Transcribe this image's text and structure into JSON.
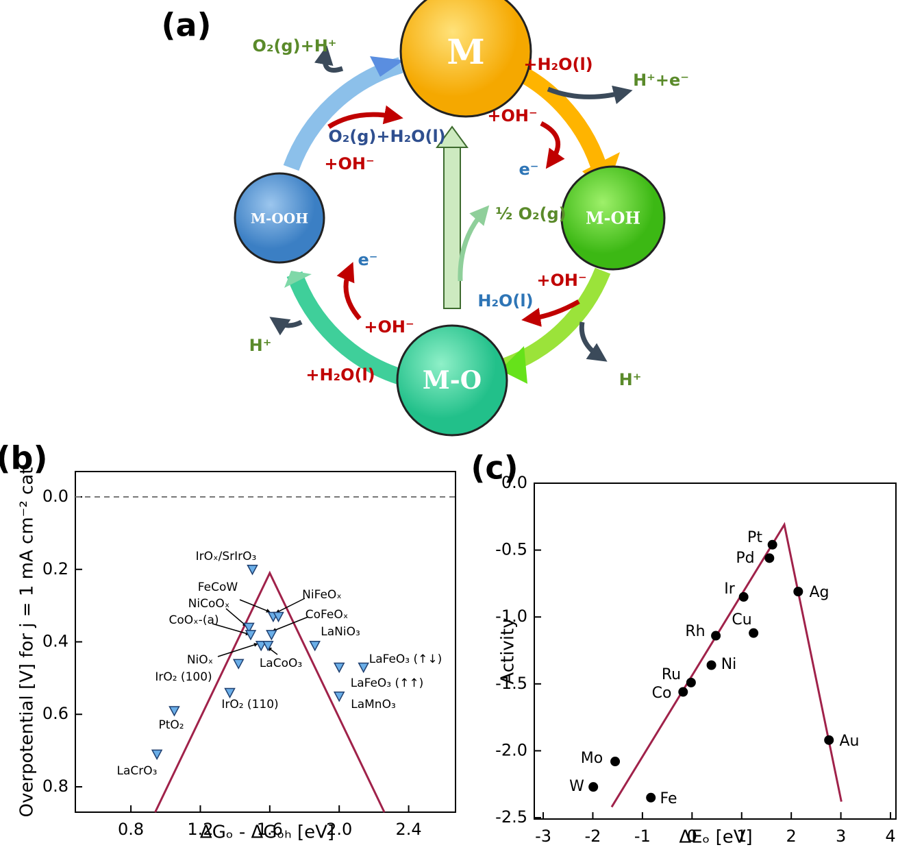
{
  "diagram": {
    "panel_label": "(a)",
    "nodes": [
      "M",
      "M-OH",
      "M-O",
      "M-OOH"
    ],
    "labels": [
      "O₂(g)+H⁺",
      "+H₂O(l)",
      "H⁺+e⁻",
      "+OH⁻",
      "e⁻",
      "O₂(g)+H₂O(l)",
      "+OH⁻",
      "½ O₂(g)",
      "e⁻",
      "+OH⁻",
      "H₂O(l)",
      "+OH⁻",
      "H⁺",
      "H⁺",
      "+H₂O(l)"
    ]
  },
  "chart_data": [
    {
      "type": "scatter",
      "panel_label": "(b)",
      "x_label": "ΔGₒ - ΔGₒₕ [eV]",
      "y_label": "Overpotential [V] for j = 1 mA cm⁻² cat",
      "x": [
        1.5,
        1.62,
        1.65,
        1.48,
        1.61,
        1.49,
        1.55,
        1.59,
        1.86,
        1.42,
        1.37,
        1.05,
        0.95,
        2.14,
        2.0,
        2.0
      ],
      "values": [
        0.2,
        0.33,
        0.33,
        0.36,
        0.38,
        0.38,
        0.41,
        0.41,
        0.41,
        0.46,
        0.54,
        0.59,
        0.71,
        0.47,
        0.47,
        0.55
      ],
      "point_labels": [
        "IrOₓ/SrIrO₃",
        "FeCoW",
        "NiFeOₓ",
        "NiCoOₓ",
        "CoFeOₓ",
        "CoOₓ-(a)",
        "NiOₓ",
        "LaCoO₃",
        "LaNiO₃",
        "IrO₂ (100)",
        "IrO₂ (110)",
        "PtO₂",
        "LaCrO₃",
        "LaFeO₃ (↑↓)",
        "LaFeO₃ (↑↑)",
        "LaMnO₃"
      ],
      "marker": "triangle-down",
      "color": "#6aaee8",
      "lines": [
        {
          "x": [
            0.94,
            1.6,
            2.26
          ],
          "values": [
            0.87,
            0.21,
            0.87
          ],
          "color": "#a0224a"
        }
      ],
      "hline": 0,
      "hline_style": "dashed",
      "xlim": [
        0.48,
        2.67
      ],
      "xticks": [
        0.8,
        1.2,
        1.6,
        {
          "value": 2,
          "label": "2.0"
        },
        2.4
      ],
      "ylim": [
        -0.07,
        0.87
      ],
      "y_inverted": true,
      "yticks": [
        {
          "value": 0,
          "label": "0.0"
        },
        0.2,
        0.4,
        0.6,
        0.8
      ],
      "grid": false
    },
    {
      "type": "scatter",
      "panel_label": "(c)",
      "x_label": "ΔEₒ [eV]",
      "y_label": "Activity",
      "x": [
        1.62,
        1.56,
        2.14,
        1.04,
        1.24,
        0.48,
        0.39,
        -0.02,
        -0.18,
        2.76,
        -1.55,
        -1.99,
        -0.83
      ],
      "values": [
        -0.46,
        -0.56,
        -0.81,
        -0.85,
        -1.12,
        -1.14,
        -1.36,
        -1.49,
        -1.56,
        -1.92,
        -2.08,
        -2.27,
        -2.35
      ],
      "point_labels": [
        "Pt",
        "Pd",
        "Ag",
        "Ir",
        "Cu",
        "Rh",
        "Ni",
        "Ru",
        "Co",
        "Au",
        "Mo",
        "W",
        "Fe"
      ],
      "marker": "circle",
      "color": "#000000",
      "lines": [
        {
          "x": [
            -1.62,
            1.86,
            3.01
          ],
          "values": [
            -2.42,
            -0.31,
            -2.38
          ],
          "color": "#a0224a"
        }
      ],
      "xlim": [
        -3.18,
        4.11
      ],
      "xticks": [
        -3,
        -2,
        -1,
        0,
        1,
        2,
        3,
        4
      ],
      "ylim": [
        -2.51,
        0
      ],
      "y_inverted": false,
      "yticks": [
        {
          "value": 0,
          "label": "0.0"
        },
        -0.5,
        {
          "value": -1,
          "label": "-1.0"
        },
        -1.5,
        {
          "value": -2,
          "label": "-2.0"
        },
        -2.5
      ],
      "grid": false
    }
  ]
}
